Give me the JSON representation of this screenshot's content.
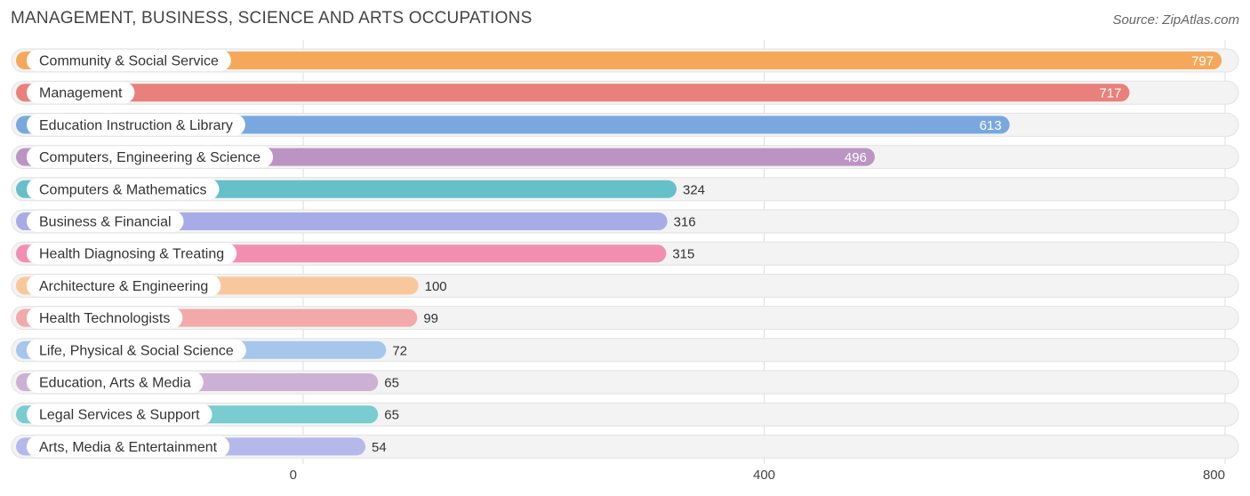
{
  "chart_title": "MANAGEMENT, BUSINESS, SCIENCE AND ARTS OCCUPATIONS",
  "source": "Source: ZipAtlas.com",
  "colors": [
    "#f6a85a",
    "#e9807b",
    "#78a8df",
    "#bb94c4",
    "#66c0c9",
    "#a8ace6",
    "#f28fb1",
    "#f8c89c",
    "#f1aaa9",
    "#a7c6ec",
    "#cdb1d4",
    "#79ccd0",
    "#b5b9ea"
  ],
  "chart_data": {
    "type": "bar",
    "orientation": "horizontal",
    "categories": [
      "Community & Social Service",
      "Management",
      "Education Instruction & Library",
      "Computers, Engineering & Science",
      "Computers & Mathematics",
      "Business & Financial",
      "Health Diagnosing & Treating",
      "Architecture & Engineering",
      "Health Technologists",
      "Life, Physical & Social Science",
      "Education, Arts & Media",
      "Legal Services & Support",
      "Arts, Media & Entertainment"
    ],
    "values": [
      797,
      717,
      613,
      496,
      324,
      316,
      315,
      100,
      99,
      72,
      65,
      65,
      54
    ],
    "xlim": [
      0,
      800
    ],
    "xticks": [
      0,
      400,
      800
    ],
    "grid": true
  }
}
